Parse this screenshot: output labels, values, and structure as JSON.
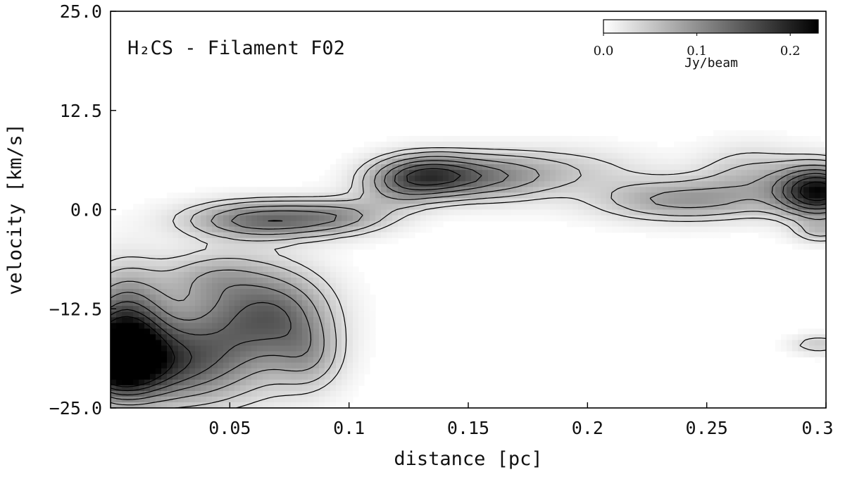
{
  "chart_data": {
    "type": "heatmap",
    "title": "H₂CS - Filament F02",
    "xlabel": "distance [pc]",
    "ylabel": "velocity [km/s]",
    "xlim": [
      0.0,
      0.3
    ],
    "ylim": [
      -25.0,
      25.0
    ],
    "x_ticks": [
      {
        "value": 0.05,
        "label": "0.05"
      },
      {
        "value": 0.1,
        "label": "0.1"
      },
      {
        "value": 0.15,
        "label": "0.15"
      },
      {
        "value": 0.2,
        "label": "0.2"
      },
      {
        "value": 0.25,
        "label": "0.25"
      },
      {
        "value": 0.3,
        "label": "0.3"
      }
    ],
    "y_ticks": [
      {
        "value": 25.0,
        "label": "25.0"
      },
      {
        "value": 12.5,
        "label": "12.5"
      },
      {
        "value": 0.0,
        "label": "0.0"
      },
      {
        "value": -12.5,
        "label": "−12.5"
      },
      {
        "value": -25.0,
        "label": "−25.0"
      }
    ],
    "colorbar": {
      "label": "Jy/beam",
      "range": [
        0.0,
        0.23
      ],
      "ticks": [
        {
          "value": 0.0,
          "label": "0.0"
        },
        {
          "value": 0.1,
          "label": "0.1"
        },
        {
          "value": 0.2,
          "label": "0.2"
        }
      ],
      "colormap": "Greys",
      "placement": "top-right inset"
    },
    "emission_peaks": [
      {
        "x": 0.003,
        "y": -19.0,
        "peak": 0.22,
        "sx": 0.012,
        "sy": 3.2
      },
      {
        "x": 0.006,
        "y": -14.0,
        "peak": 0.13,
        "sx": 0.012,
        "sy": 4.5
      },
      {
        "x": 0.025,
        "y": -19.5,
        "peak": 0.12,
        "sx": 0.018,
        "sy": 3.5
      },
      {
        "x": 0.052,
        "y": -15.0,
        "peak": 0.1,
        "sx": 0.02,
        "sy": 5.5
      },
      {
        "x": 0.072,
        "y": -13.0,
        "peak": 0.08,
        "sx": 0.015,
        "sy": 3.5
      },
      {
        "x": 0.083,
        "y": -18.5,
        "peak": 0.06,
        "sx": 0.01,
        "sy": 3.0
      },
      {
        "x": 0.042,
        "y": -8.5,
        "peak": 0.04,
        "sx": 0.015,
        "sy": 2.0
      },
      {
        "x": 0.065,
        "y": -1.3,
        "peak": 0.13,
        "sx": 0.022,
        "sy": 1.6
      },
      {
        "x": 0.097,
        "y": -0.8,
        "peak": 0.06,
        "sx": 0.015,
        "sy": 1.5
      },
      {
        "x": 0.12,
        "y": 2.5,
        "peak": 0.05,
        "sx": 0.012,
        "sy": 2.0
      },
      {
        "x": 0.133,
        "y": 4.3,
        "peak": 0.15,
        "sx": 0.015,
        "sy": 1.8
      },
      {
        "x": 0.16,
        "y": 4.0,
        "peak": 0.08,
        "sx": 0.018,
        "sy": 2.0
      },
      {
        "x": 0.19,
        "y": 5.0,
        "peak": 0.04,
        "sx": 0.025,
        "sy": 2.0
      },
      {
        "x": 0.24,
        "y": 1.2,
        "peak": 0.09,
        "sx": 0.025,
        "sy": 1.8
      },
      {
        "x": 0.268,
        "y": 4.5,
        "peak": 0.05,
        "sx": 0.015,
        "sy": 2.5
      },
      {
        "x": 0.297,
        "y": 2.3,
        "peak": 0.22,
        "sx": 0.012,
        "sy": 2.2
      },
      {
        "x": 0.298,
        "y": -2.8,
        "peak": 0.05,
        "sx": 0.008,
        "sy": 1.0
      },
      {
        "x": 0.297,
        "y": -17.0,
        "peak": 0.05,
        "sx": 0.008,
        "sy": 0.8
      }
    ],
    "contour_levels": [
      0.03,
      0.05,
      0.08,
      0.11,
      0.14,
      0.17,
      0.2
    ],
    "grid": false
  }
}
